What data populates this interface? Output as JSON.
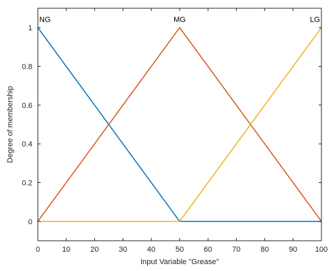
{
  "chart_data": {
    "type": "line",
    "title": "",
    "xlabel": "Input Variable \"Grease\"",
    "ylabel": "Degree of membership",
    "xlim": [
      0,
      100
    ],
    "ylim": [
      -0.1,
      1.1
    ],
    "xticks": [
      0,
      10,
      20,
      30,
      40,
      50,
      60,
      70,
      80,
      90,
      100
    ],
    "yticks": [
      0,
      0.2,
      0.4,
      0.6,
      0.8,
      1
    ],
    "ytick_labels": [
      "0",
      "0.2",
      "0.4",
      "0.6",
      "0.8",
      "1"
    ],
    "grid": false,
    "series": [
      {
        "name": "NG",
        "color": "#0072BD",
        "x": [
          0,
          50,
          100
        ],
        "y": [
          1,
          0,
          0
        ]
      },
      {
        "name": "MG",
        "color": "#D95319",
        "x": [
          0,
          50,
          100
        ],
        "y": [
          0,
          1,
          0
        ]
      },
      {
        "name": "LG",
        "color": "#EDB120",
        "x": [
          0,
          50,
          100
        ],
        "y": [
          0,
          0,
          1
        ]
      }
    ]
  }
}
